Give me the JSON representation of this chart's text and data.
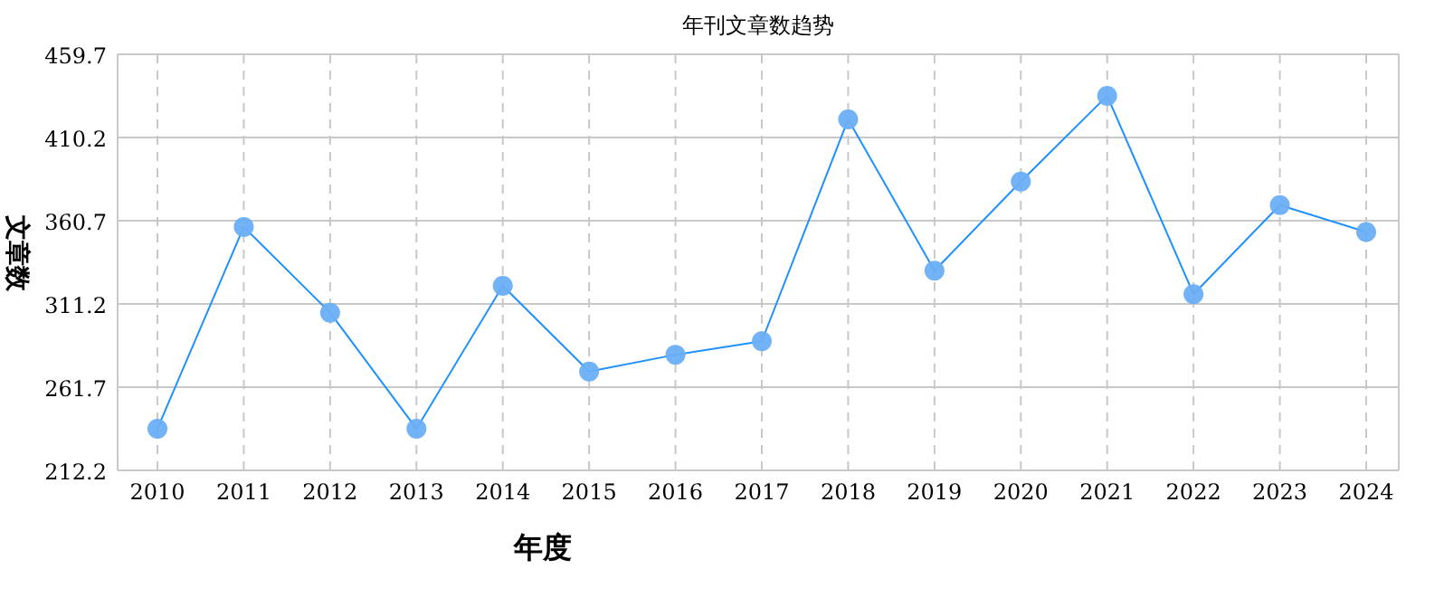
{
  "chart_data": {
    "type": "line",
    "title": "年刊文章数趋势",
    "xlabel": "年度",
    "ylabel": "文章数",
    "categories": [
      "2010",
      "2011",
      "2012",
      "2013",
      "2014",
      "2015",
      "2016",
      "2017",
      "2018",
      "2019",
      "2020",
      "2021",
      "2022",
      "2023",
      "2024"
    ],
    "series": [
      {
        "color": "#1e90ff",
        "values": [
          237,
          357,
          306,
          237,
          322,
          271,
          281,
          289,
          421,
          331,
          384,
          435,
          317,
          370,
          354
        ]
      }
    ],
    "ylim": [
      212.2,
      459.7
    ],
    "yticks": [
      212.2,
      261.7,
      311.2,
      360.7,
      410.2,
      459.7
    ],
    "grid": true,
    "marker": "circle",
    "line_style": "solid"
  }
}
